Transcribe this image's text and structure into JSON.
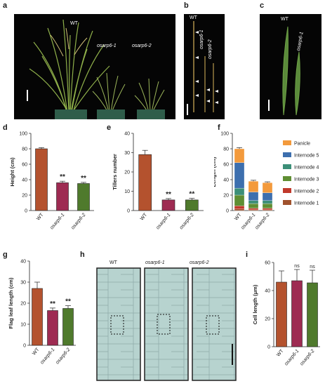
{
  "panels": {
    "a": "a",
    "b": "b",
    "c": "c",
    "d": "d",
    "e": "e",
    "f": "f",
    "g": "g",
    "h": "h",
    "i": "i"
  },
  "photo_labels": {
    "a_wt": "WT",
    "a_m1": "osarp6-1",
    "a_m2": "osarp6-2",
    "b_wt": "WT",
    "b_m1": "osarp6-1",
    "b_m2": "osarp6-2",
    "c_wt": "WT",
    "c_m1": "osarp6-1"
  },
  "micro_labels": {
    "wt": "WT",
    "m1": "osarp6-1",
    "m2": "osarp6-2"
  },
  "colors": {
    "wt": "#b4522e",
    "m1": "#9e2b52",
    "m2": "#4f7a2c",
    "panicle": "#f39a3c",
    "internode5": "#3d6fae",
    "internode4": "#3c8f78",
    "internode3": "#5f8e33",
    "internode2": "#c0392b",
    "internode1": "#a0522d",
    "microscopy": "#b7d3cf"
  },
  "chart_data": [
    {
      "id": "d",
      "type": "bar",
      "categories": [
        "WT",
        "osarp6-1",
        "osarp6-2"
      ],
      "values": [
        80,
        36,
        35
      ],
      "errors": [
        1.5,
        2,
        1.5
      ],
      "significance": [
        "",
        "**",
        "**"
      ],
      "ylabel": "Height (cm)",
      "ylim": [
        0,
        100
      ],
      "yticks": [
        0,
        20,
        40,
        60,
        80,
        100
      ]
    },
    {
      "id": "e",
      "type": "bar",
      "categories": [
        "WT",
        "osarp6-1",
        "osarp6-2"
      ],
      "values": [
        29,
        5.5,
        5.5
      ],
      "errors": [
        2.2,
        0.7,
        0.8
      ],
      "significance": [
        "",
        "**",
        "**"
      ],
      "ylabel": "Tillers number",
      "ylim": [
        0,
        40
      ],
      "yticks": [
        0,
        10,
        20,
        30,
        40
      ]
    },
    {
      "id": "f",
      "type": "bar",
      "stacked": true,
      "categories": [
        "WT",
        "osarp6-1",
        "osarp6-2"
      ],
      "ylabel": "Length (cm)",
      "ylim": [
        0,
        100
      ],
      "yticks": [
        0,
        20,
        40,
        60,
        80,
        100
      ],
      "totals_error": [
        1.5,
        1.2,
        1.2
      ],
      "series": [
        {
          "name": "Internode 1",
          "values": [
            2,
            1,
            1
          ]
        },
        {
          "name": "Internode 2",
          "values": [
            4,
            2,
            2
          ]
        },
        {
          "name": "Internode 3",
          "values": [
            14,
            6,
            6
          ]
        },
        {
          "name": "Internode 4",
          "values": [
            9,
            4,
            4
          ]
        },
        {
          "name": "Internode 5",
          "values": [
            33,
            11,
            10
          ]
        },
        {
          "name": "Panicle",
          "values": [
            18,
            14,
            13
          ]
        }
      ],
      "legend": [
        "Panicle",
        "Internode 5",
        "Internode 4",
        "Internode 3",
        "Internode 2",
        "Internode 1"
      ]
    },
    {
      "id": "g",
      "type": "bar",
      "categories": [
        "WT",
        "osarp6-1",
        "osarp6-2"
      ],
      "values": [
        27,
        16.5,
        17.5
      ],
      "errors": [
        3,
        1.2,
        1.3
      ],
      "significance": [
        "",
        "**",
        "**"
      ],
      "ylabel": "Flag leaf length (cm)",
      "ylim": [
        0,
        40
      ],
      "yticks": [
        0,
        10,
        20,
        30,
        40
      ]
    },
    {
      "id": "i",
      "type": "bar",
      "categories": [
        "WT",
        "osarp6-1",
        "osarp6-2"
      ],
      "values": [
        46,
        47,
        45.5
      ],
      "errors": [
        8,
        8,
        9
      ],
      "significance": [
        "",
        "ns",
        "ns"
      ],
      "ylabel": "Cell length (μm)",
      "ylim": [
        0,
        60
      ],
      "yticks": [
        0,
        20,
        40,
        60
      ]
    }
  ]
}
